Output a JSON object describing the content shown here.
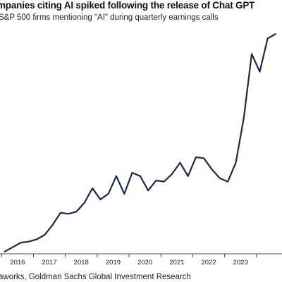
{
  "chart_data": {
    "type": "line",
    "title": "mpanies citing AI spiked following the release of Chat GPT",
    "subtitle": "S&P 500 firms mentioning \"AI\" during quarterly earnings calls",
    "source": "aworks, Goldman Sachs Global Investment Research",
    "x_tick_labels": [
      "2016",
      "2017",
      "2018",
      "2019",
      "2020",
      "2021",
      "2022",
      "2023"
    ],
    "xlim": [
      2015.45,
      2024.3
    ],
    "ylim": [
      0,
      100
    ],
    "grid": false,
    "legend": "none",
    "line_color": "#1b2a4a",
    "series": [
      {
        "x": [
          2015.6,
          2015.85,
          2016.1,
          2016.35,
          2016.6,
          2016.85,
          2017.1,
          2017.35,
          2017.6,
          2017.85,
          2018.1,
          2018.35,
          2018.6,
          2018.85,
          2019.1,
          2019.35,
          2019.6,
          2019.85,
          2020.1,
          2020.35,
          2020.6,
          2020.85,
          2021.1,
          2021.35,
          2021.6,
          2021.85,
          2022.1,
          2022.35,
          2022.6,
          2022.85,
          2023.1,
          2023.35,
          2023.6,
          2023.85,
          2024.1
        ],
        "values": [
          1,
          3,
          5,
          5.5,
          6.5,
          8.5,
          13,
          18.5,
          18,
          19,
          23,
          29.5,
          24.5,
          27,
          35,
          27,
          36.5,
          35,
          28.5,
          33,
          32.5,
          36,
          41,
          35,
          43.5,
          43,
          38,
          34,
          32.5,
          41,
          61,
          90,
          82,
          97,
          99
        ]
      }
    ]
  }
}
